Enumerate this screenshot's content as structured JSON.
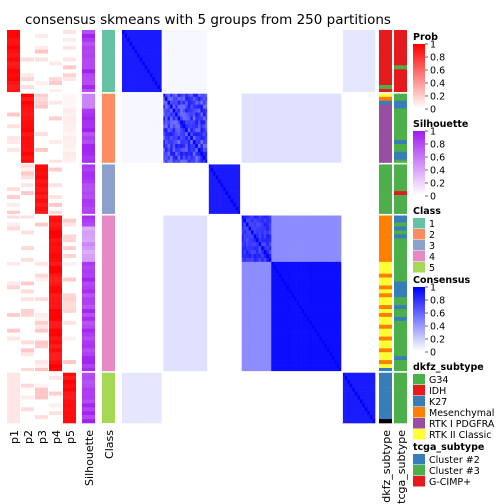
{
  "chart_data": {
    "type": "heatmap",
    "title": "consensus skmeans with 5 groups from 250 partitions",
    "n_samples": 100,
    "group_sizes": {
      "1": 16,
      "2": 18,
      "3": 13,
      "4": 40,
      "5": 13
    },
    "prob_columns": [
      "p1",
      "p2",
      "p3",
      "p4",
      "p5"
    ],
    "silhouette_label": "Silhouette",
    "class_label": "Class",
    "dkfz_label": "dkfz_subtype",
    "tcga_label": "tcga_subtype",
    "group_order": [
      "1",
      "2",
      "3",
      "4",
      "5"
    ],
    "colors": {
      "prob_high": "#ff0000",
      "silhouette_high": "#a020f0",
      "consensus_high": "#0000ff",
      "class": {
        "1": "#66c2a5",
        "2": "#fc8d62",
        "3": "#8da0cb",
        "4": "#e78ac3",
        "5": "#a6d854"
      },
      "dkfz": {
        "G34": "#4daf4a",
        "IDH": "#e41a1c",
        "K27": "#377eb8",
        "Mesenchymal": "#ff7f00",
        "RTK I PDGFRA": "#984ea3",
        "RTK II Classic": "#ffff33"
      },
      "tcga": {
        "Cluster #2": "#377eb8",
        "Cluster #3": "#4daf4a",
        "G-CIMP+": "#e41a1c"
      }
    },
    "legends": [
      {
        "title": "Prob",
        "type": "continuous",
        "palette": "prob",
        "ticks": [
          "1",
          "0.8",
          "0.6",
          "0.4",
          "0.2",
          "0"
        ]
      },
      {
        "title": "Silhouette",
        "type": "continuous",
        "palette": "sil",
        "ticks": [
          "1",
          "0.8",
          "0.6",
          "0.4",
          "0.2",
          "0"
        ]
      },
      {
        "title": "Class",
        "type": "discrete",
        "items": [
          {
            "label": "1",
            "color": "#66c2a5"
          },
          {
            "label": "2",
            "color": "#fc8d62"
          },
          {
            "label": "3",
            "color": "#8da0cb"
          },
          {
            "label": "4",
            "color": "#e78ac3"
          },
          {
            "label": "5",
            "color": "#a6d854"
          }
        ]
      },
      {
        "title": "Consensus",
        "type": "continuous",
        "palette": "cons",
        "ticks": [
          "1",
          "0.8",
          "0.6",
          "0.4",
          "0.2",
          "0"
        ]
      },
      {
        "title": "dkfz_subtype",
        "type": "discrete",
        "items": [
          {
            "label": "G34",
            "color": "#4daf4a"
          },
          {
            "label": "IDH",
            "color": "#e41a1c"
          },
          {
            "label": "K27",
            "color": "#377eb8"
          },
          {
            "label": "Mesenchymal",
            "color": "#ff7f00"
          },
          {
            "label": "RTK I PDGFRA",
            "color": "#984ea3"
          },
          {
            "label": "RTK II Classic",
            "color": "#ffff33"
          }
        ]
      },
      {
        "title": "tcga_subtype",
        "type": "discrete",
        "items": [
          {
            "label": "Cluster #2",
            "color": "#377eb8"
          },
          {
            "label": "Cluster #3",
            "color": "#4daf4a"
          },
          {
            "label": "G-CIMP+",
            "color": "#e41a1c"
          }
        ]
      }
    ]
  }
}
